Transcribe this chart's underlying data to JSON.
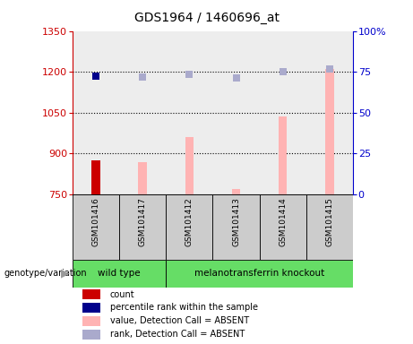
{
  "title": "GDS1964 / 1460696_at",
  "samples": [
    "GSM101416",
    "GSM101417",
    "GSM101412",
    "GSM101413",
    "GSM101414",
    "GSM101415"
  ],
  "x_positions": [
    1,
    2,
    3,
    4,
    5,
    6
  ],
  "bar_values": [
    875,
    867,
    960,
    770,
    1035,
    1210
  ],
  "bar_colors": [
    "#cc0000",
    "#ffb3b3",
    "#ffb3b3",
    "#ffb3b3",
    "#ffb3b3",
    "#ffb3b3"
  ],
  "dot_values": [
    1185,
    1182,
    1190,
    1177,
    1202,
    1210
  ],
  "dot_colors": [
    "#00008b",
    "#aaaacc",
    "#aaaacc",
    "#aaaacc",
    "#aaaacc",
    "#aaaacc"
  ],
  "ylim_left": [
    750,
    1350
  ],
  "ylim_right": [
    0,
    100
  ],
  "yticks_left": [
    750,
    900,
    1050,
    1200,
    1350
  ],
  "yticks_right": [
    0,
    25,
    50,
    75,
    100
  ],
  "ytick_labels_right": [
    "0",
    "25",
    "50",
    "75",
    "100%"
  ],
  "hlines": [
    900,
    1050,
    1200
  ],
  "bar_width": 0.18,
  "left_axis_color": "#cc0000",
  "right_axis_color": "#0000cc",
  "sample_bg_color": "#cccccc",
  "wildtype_color": "#66dd66",
  "knockout_color": "#66dd66",
  "legend_colors": [
    "#cc0000",
    "#00008b",
    "#ffb3b3",
    "#aaaacc"
  ],
  "legend_labels": [
    "count",
    "percentile rank within the sample",
    "value, Detection Call = ABSENT",
    "rank, Detection Call = ABSENT"
  ],
  "genotype_label": "genotype/variation"
}
